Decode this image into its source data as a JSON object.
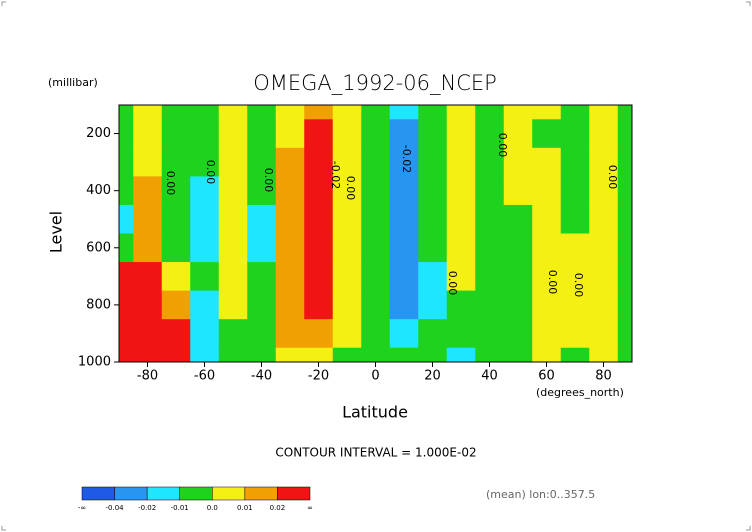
{
  "chart_data": {
    "type": "contour",
    "title": "OMEGA_1992-06_NCEP",
    "y_unit": "(millibar)",
    "y_label": "Level",
    "x_label": "Latitude",
    "x_unit": "(degrees_north)",
    "contour_interval_text": "CONTOUR INTERVAL = 1.000E-02",
    "footer_note": "(mean) lon:0..357.5",
    "x": [
      -90,
      -80,
      -70,
      -60,
      -50,
      -40,
      -30,
      -20,
      -10,
      0,
      10,
      20,
      30,
      40,
      50,
      60,
      70,
      80,
      90
    ],
    "levels_y": [
      100,
      200,
      300,
      400,
      500,
      600,
      700,
      800,
      900,
      1000
    ],
    "field": [
      [
        -0.005,
        -0.005,
        -0.005,
        -0.005,
        -0.012,
        -0.005,
        0.03,
        0.03,
        0.03,
        0.03
      ],
      [
        0.005,
        0.005,
        0.005,
        0.015,
        0.015,
        0.015,
        0.03,
        0.04,
        0.05,
        0.06
      ],
      [
        -0.005,
        -0.005,
        -0.005,
        -0.005,
        -0.005,
        -0.005,
        0.005,
        0.015,
        0.03,
        0.03
      ],
      [
        -0.005,
        -0.005,
        -0.005,
        -0.015,
        -0.015,
        -0.015,
        -0.005,
        -0.015,
        -0.015,
        -0.015
      ],
      [
        0.005,
        0.005,
        0.005,
        0.005,
        0.005,
        0.005,
        0.005,
        0.005,
        -0.005,
        -0.005
      ],
      [
        -0.005,
        -0.005,
        -0.005,
        -0.005,
        -0.015,
        -0.015,
        -0.005,
        -0.005,
        -0.005,
        -0.005
      ],
      [
        0.005,
        0.005,
        0.015,
        0.015,
        0.015,
        0.015,
        0.015,
        0.015,
        0.015,
        0.005
      ],
      [
        0.015,
        0.025,
        0.025,
        0.025,
        0.025,
        0.025,
        0.025,
        0.025,
        0.015,
        0.005
      ],
      [
        0.005,
        0.005,
        0.005,
        0.005,
        0.005,
        0.005,
        0.005,
        0.005,
        0.005,
        -0.005
      ],
      [
        -0.005,
        -0.005,
        -0.005,
        -0.005,
        -0.005,
        -0.005,
        -0.005,
        -0.005,
        -0.005,
        -0.005
      ],
      [
        -0.015,
        -0.025,
        -0.025,
        -0.025,
        -0.025,
        -0.025,
        -0.025,
        -0.025,
        -0.015,
        -0.005
      ],
      [
        -0.005,
        -0.005,
        -0.005,
        -0.005,
        -0.005,
        -0.005,
        -0.015,
        -0.015,
        -0.005,
        -0.005
      ],
      [
        0.005,
        0.005,
        0.005,
        0.005,
        0.005,
        0.005,
        0.005,
        -0.005,
        -0.005,
        -0.015
      ],
      [
        -0.005,
        -0.005,
        -0.005,
        -0.005,
        -0.005,
        -0.005,
        -0.005,
        -0.005,
        -0.005,
        -0.005
      ],
      [
        0.005,
        0.005,
        0.005,
        0.005,
        -0.005,
        -0.005,
        -0.005,
        -0.005,
        -0.005,
        -0.005
      ],
      [
        0.005,
        -0.005,
        0.005,
        0.005,
        0.005,
        0.005,
        0.005,
        0.005,
        0.005,
        0.005
      ],
      [
        -0.005,
        -0.005,
        -0.005,
        -0.005,
        -0.005,
        0.005,
        0.005,
        0.005,
        0.005,
        -0.005
      ],
      [
        0.005,
        0.005,
        0.005,
        0.005,
        0.005,
        0.005,
        0.005,
        0.005,
        0.005,
        0.005
      ],
      [
        -0.005,
        -0.005,
        -0.005,
        -0.005,
        -0.005,
        -0.005,
        -0.005,
        -0.005,
        -0.005,
        -0.005
      ]
    ],
    "xlim": [
      -90,
      90
    ],
    "ylim": [
      1000,
      100
    ],
    "xticks": [
      -80,
      -60,
      -40,
      -20,
      0,
      20,
      40,
      60,
      80
    ],
    "yticks": [
      200,
      400,
      600,
      800,
      1000
    ],
    "contour_labels": [
      "0.00",
      "0.00",
      "0.00",
      "-0.02",
      "0.00",
      "-0.02",
      "0.00",
      "0.00",
      "0.00",
      "0.00",
      "0.00"
    ],
    "colorbar": {
      "levels": [
        -0.04,
        -0.02,
        -0.01,
        {
          "value": 0,
          "label": "0.0"
        },
        0.01,
        0.02
      ],
      "end_labels": [
        "-∞",
        "∞"
      ],
      "colors": [
        "#1e5ae6",
        "#2896f0",
        "#1ee6ff",
        "#1ed21e",
        "#f5f014",
        "#f0a000",
        "#f01414"
      ]
    }
  }
}
